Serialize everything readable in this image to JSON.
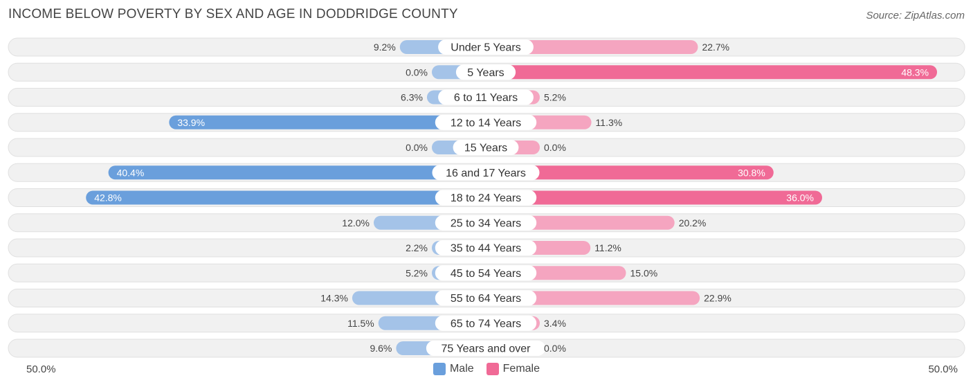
{
  "header": {
    "title": "INCOME BELOW POVERTY BY SEX AND AGE IN DODDRIDGE COUNTY",
    "source": "Source: ZipAtlas.com"
  },
  "axis": {
    "left_label": "50.0%",
    "right_label": "50.0%"
  },
  "legend": {
    "male_label": "Male",
    "female_label": "Female"
  },
  "colors": {
    "male": "#a4c3e8",
    "male_strong": "#6a9fdc",
    "female": "#f5a5c0",
    "female_strong": "#f06a96",
    "row_bg": "#f1f1f1",
    "row_border": "#e0e0e0"
  },
  "chart_data": {
    "type": "bar",
    "orientation": "horizontal-diverging",
    "title": "INCOME BELOW POVERTY BY SEX AND AGE IN DODDRIDGE COUNTY",
    "xlim": [
      -50,
      50
    ],
    "categories": [
      "Under 5 Years",
      "5 Years",
      "6 to 11 Years",
      "12 to 14 Years",
      "15 Years",
      "16 and 17 Years",
      "18 to 24 Years",
      "25 to 34 Years",
      "35 to 44 Years",
      "45 to 54 Years",
      "55 to 64 Years",
      "65 to 74 Years",
      "75 Years and over"
    ],
    "series": [
      {
        "name": "Male",
        "values": [
          9.2,
          0.0,
          6.3,
          33.9,
          0.0,
          40.4,
          42.8,
          12.0,
          2.2,
          5.2,
          14.3,
          11.5,
          9.6
        ],
        "labels": [
          "9.2%",
          "0.0%",
          "6.3%",
          "33.9%",
          "0.0%",
          "40.4%",
          "42.8%",
          "12.0%",
          "2.2%",
          "5.2%",
          "14.3%",
          "11.5%",
          "9.6%"
        ]
      },
      {
        "name": "Female",
        "values": [
          22.7,
          48.3,
          5.2,
          11.3,
          0.0,
          30.8,
          36.0,
          20.2,
          11.2,
          15.0,
          22.9,
          3.4,
          0.0
        ],
        "labels": [
          "22.7%",
          "48.3%",
          "5.2%",
          "11.3%",
          "0.0%",
          "30.8%",
          "36.0%",
          "20.2%",
          "11.2%",
          "15.0%",
          "22.9%",
          "3.4%",
          "0.0%"
        ]
      }
    ]
  }
}
